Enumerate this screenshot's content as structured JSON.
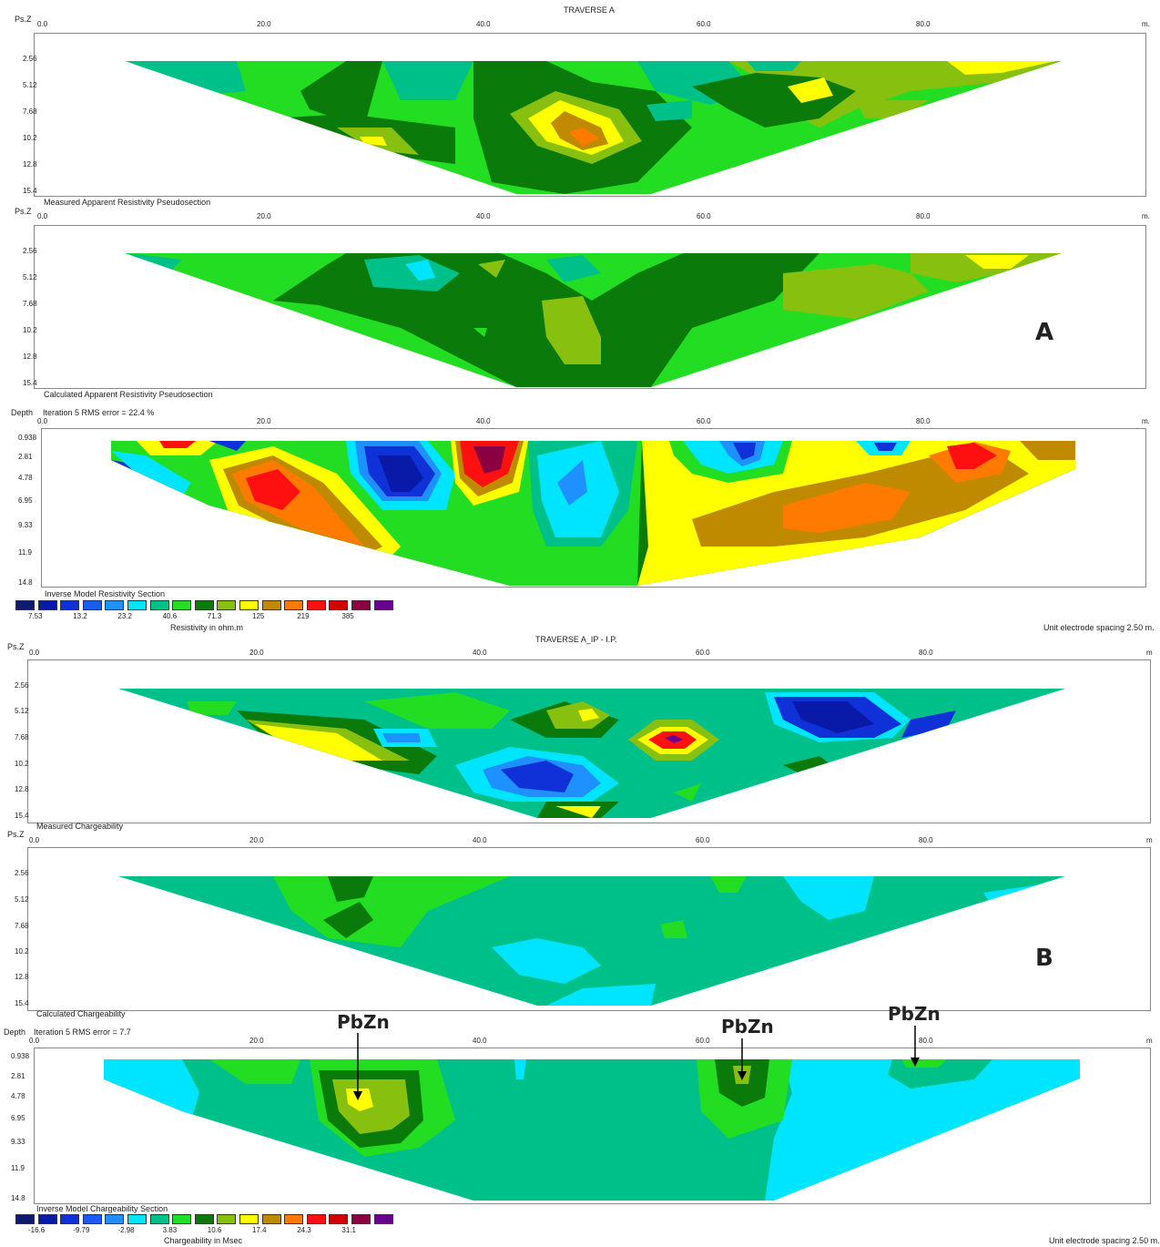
{
  "traverse_a": {
    "title": "TRAVERSE A",
    "panel_letter": "A",
    "unit_spacing": "Unit electrode spacing 2.50 m.",
    "panels": [
      {
        "label": "Measured Apparent Resistivity Pseudosection",
        "depth_label": "Ps.Z",
        "depths": [
          "2.56",
          "5.12",
          "7.68",
          "10.2",
          "12.8",
          "15.4"
        ]
      },
      {
        "label": "Calculated Apparent Resistivity Pseudosection",
        "depth_label": "Ps.Z",
        "depths": [
          "2.56",
          "5.12",
          "7.68",
          "10.2",
          "12.8",
          "15.4"
        ]
      },
      {
        "label": "Inverse Model Resistivity Section",
        "depth_label": "Depth",
        "iteration": "Iteration 5 RMS error = 22.4 %",
        "depths": [
          "0.938",
          "2.81",
          "4.78",
          "6.95",
          "9.33",
          "11.9",
          "14.8"
        ]
      }
    ],
    "x_ticks": [
      "0.0",
      "20.0",
      "40.0",
      "60.0",
      "80.0",
      "m."
    ],
    "legend": {
      "values": [
        "7.53",
        "13.2",
        "23.2",
        "40.6",
        "71.3",
        "125",
        "219",
        "385"
      ],
      "caption": "Resistivity in ohm.m"
    }
  },
  "traverse_b": {
    "title": "TRAVERSE A_IP - I.P.",
    "panel_letter": "B",
    "unit_spacing": "Unit electrode spacing 2.50 m.",
    "panels": [
      {
        "label": "Measured Chargeability",
        "depth_label": "Ps.Z",
        "depths": [
          "2.56",
          "5.12",
          "7.68",
          "10.2",
          "12.8",
          "15.4"
        ]
      },
      {
        "label": "Calculated Chargeability",
        "depth_label": "Ps.Z",
        "depths": [
          "2.56",
          "5.12",
          "7.68",
          "10.2",
          "12.8",
          "15.4"
        ]
      },
      {
        "label": "Inverse Model Chargeability Section",
        "depth_label": "Depth",
        "iteration": "Iteration 5 RMS error = 7.7",
        "depths": [
          "0.938",
          "2.81",
          "4.78",
          "6.95",
          "9.33",
          "11.9",
          "14.8"
        ]
      }
    ],
    "x_ticks": [
      "0.0",
      "20.0",
      "40.0",
      "60.0",
      "80.0",
      "m"
    ],
    "legend": {
      "values": [
        "-16.6",
        "-9.79",
        "-2.98",
        "3.83",
        "10.6",
        "17.4",
        "24.3",
        "31.1"
      ],
      "caption": "Chargeability in Msec"
    },
    "annotations": [
      "PbZn",
      "PbZn",
      "PbZn"
    ]
  },
  "palette": [
    "#0d1a6e",
    "#0a1aa8",
    "#1030d8",
    "#1a5cf0",
    "#1e90ff",
    "#00e5ff",
    "#00c08a",
    "#22dd22",
    "#0a7a0a",
    "#88c010",
    "#ffff00",
    "#c08a00",
    "#ff7a00",
    "#ff1010",
    "#d00000",
    "#8a0040",
    "#6a0090"
  ]
}
